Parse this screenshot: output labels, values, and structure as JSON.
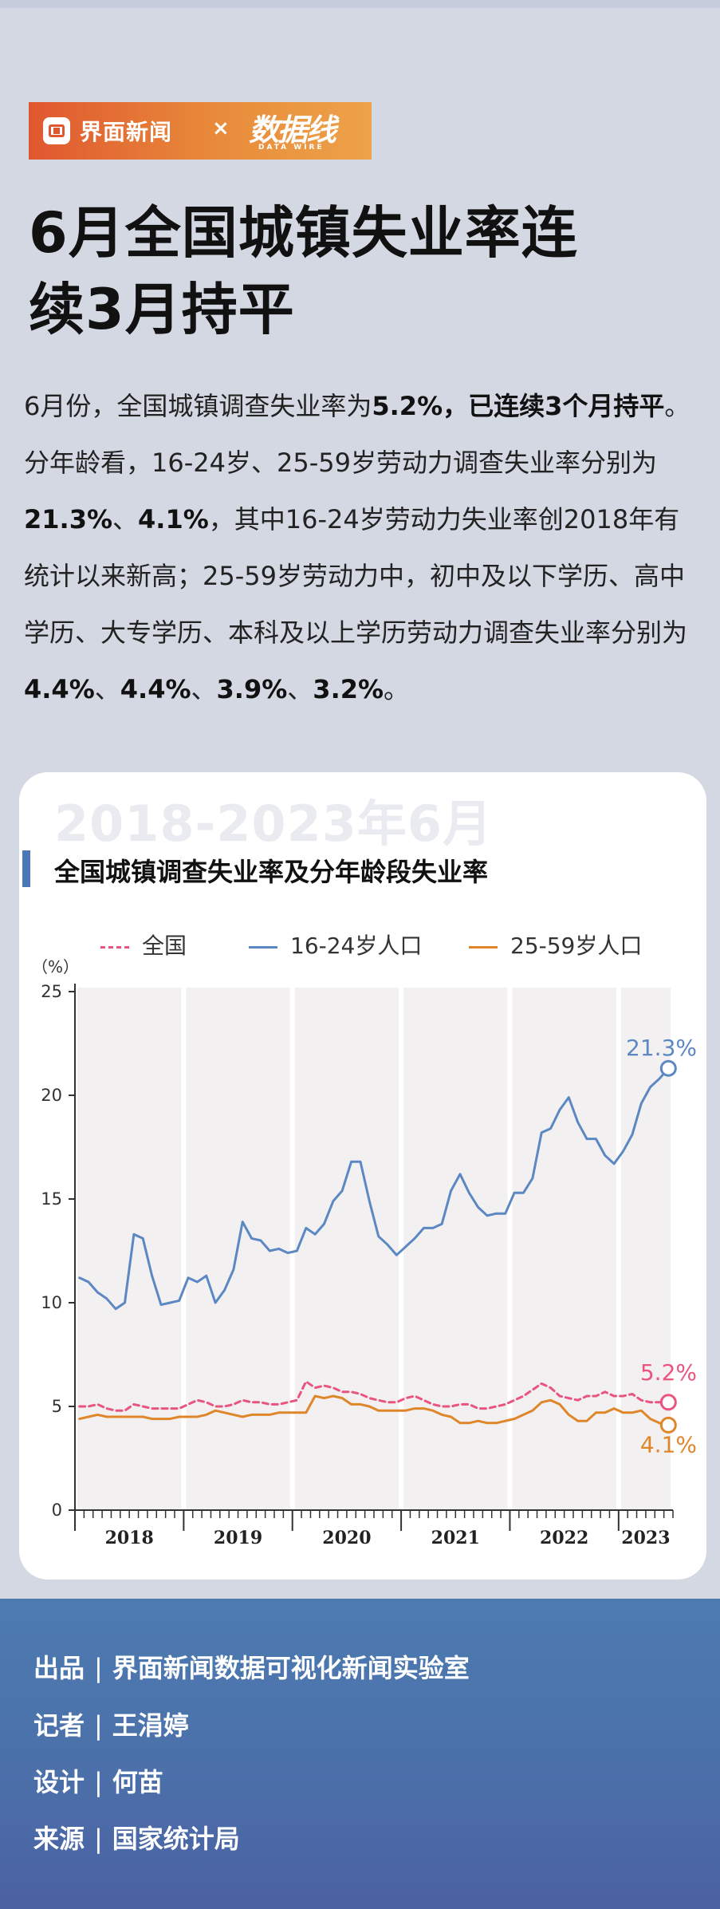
{
  "brand": {
    "name": "界面新闻",
    "cross": "×",
    "partner": "数据线",
    "partner_sub": "DATA WIRE"
  },
  "headline": {
    "line1": "6月全国城镇失业率连",
    "line2": "续3月持平"
  },
  "intro": {
    "p1": "6月份，全国城镇调查失业率为",
    "b1": "5.2%，已连续3个月持平",
    "p2": "。分年龄看，16-24岁、25-59岁劳动力调查失业率分别为",
    "b2": "21.3%",
    "p3": "、",
    "b3": "4.1%",
    "p4": "，其中16-24岁劳动力失业率创2018年有统计以来新高；25-59岁劳动力中，初中及以下学历、高中学历、大专学历、本科及以上学历劳动力调查失业率分别为",
    "b4": "4.4%",
    "p5": "、",
    "b5": "4.4%",
    "p6": "、",
    "b6": "3.9%",
    "p7": "、",
    "b7": "3.2%",
    "p8": "。"
  },
  "chart_header": {
    "period": "2018-2023年6月",
    "title": "全国城镇调查失业率及分年龄段失业率",
    "unit": "（%）"
  },
  "chart_data": {
    "type": "line",
    "title": "全国城镇调查失业率及分年龄段失业率",
    "xlabel": "",
    "ylabel": "（%）",
    "ylim": [
      0,
      25
    ],
    "yticks": [
      0,
      5,
      10,
      15,
      20,
      25
    ],
    "year_labels": [
      "2018",
      "2019",
      "2020",
      "2021",
      "2022",
      "2023"
    ],
    "x_start": "2018-01",
    "x_end": "2023-06",
    "grid": false,
    "legend": "top",
    "end_labels": [
      "21.3%",
      "5.2%",
      "4.1%"
    ],
    "series": [
      {
        "name": "全国",
        "style": "dashed",
        "color": "#e9557f",
        "values": [
          5.0,
          5.0,
          5.1,
          4.9,
          4.8,
          4.8,
          5.1,
          5.0,
          4.9,
          4.9,
          4.9,
          4.9,
          5.1,
          5.3,
          5.2,
          5.0,
          5.0,
          5.1,
          5.3,
          5.2,
          5.2,
          5.1,
          5.1,
          5.2,
          5.3,
          6.2,
          5.9,
          6.0,
          5.9,
          5.7,
          5.7,
          5.6,
          5.4,
          5.3,
          5.2,
          5.2,
          5.4,
          5.5,
          5.3,
          5.1,
          5.0,
          5.0,
          5.1,
          5.1,
          4.9,
          4.9,
          5.0,
          5.1,
          5.3,
          5.5,
          5.8,
          6.1,
          5.9,
          5.5,
          5.4,
          5.3,
          5.5,
          5.5,
          5.7,
          5.5,
          5.5,
          5.6,
          5.3,
          5.2,
          5.2,
          5.2
        ]
      },
      {
        "name": "16-24岁人口",
        "style": "solid",
        "color": "#5b88c3",
        "values": [
          11.2,
          11.0,
          10.5,
          10.2,
          9.7,
          10.0,
          13.3,
          13.1,
          11.3,
          9.9,
          10.0,
          10.1,
          11.2,
          11.0,
          11.3,
          10.0,
          10.6,
          11.6,
          13.9,
          13.1,
          13.0,
          12.5,
          12.6,
          12.4,
          12.5,
          13.6,
          13.3,
          13.8,
          14.9,
          15.4,
          16.8,
          16.8,
          14.9,
          13.2,
          12.8,
          12.3,
          12.7,
          13.1,
          13.6,
          13.6,
          13.8,
          15.4,
          16.2,
          15.3,
          14.6,
          14.2,
          14.3,
          14.3,
          15.3,
          15.3,
          16.0,
          18.2,
          18.4,
          19.3,
          19.9,
          18.7,
          17.9,
          17.9,
          17.1,
          16.7,
          17.3,
          18.1,
          19.6,
          20.4,
          20.8,
          21.3
        ]
      },
      {
        "name": "25-59岁人口",
        "style": "solid",
        "color": "#e0862a",
        "values": [
          4.4,
          4.5,
          4.6,
          4.5,
          4.5,
          4.5,
          4.5,
          4.5,
          4.4,
          4.4,
          4.4,
          4.5,
          4.5,
          4.5,
          4.6,
          4.8,
          4.7,
          4.6,
          4.5,
          4.6,
          4.6,
          4.6,
          4.7,
          4.7,
          4.7,
          4.7,
          5.5,
          5.4,
          5.5,
          5.4,
          5.1,
          5.1,
          5.0,
          4.8,
          4.8,
          4.8,
          4.8,
          4.9,
          4.9,
          4.8,
          4.6,
          4.5,
          4.2,
          4.2,
          4.3,
          4.2,
          4.2,
          4.3,
          4.4,
          4.6,
          4.8,
          5.2,
          5.3,
          5.1,
          4.6,
          4.3,
          4.3,
          4.7,
          4.7,
          4.9,
          4.7,
          4.7,
          4.8,
          4.4,
          4.2,
          4.1
        ]
      }
    ]
  },
  "footer": {
    "producer_label": "出品",
    "producer": "界面新闻数据可视化新闻实验室",
    "reporter_label": "记者",
    "reporter": "王涓婷",
    "designer_label": "设计",
    "designer": "何苗",
    "source_label": "来源",
    "source": "国家统计局",
    "sep": "|"
  },
  "colors": {
    "accent_blue": "#4a77b6",
    "brand_orange": "#e0572f",
    "national": "#e9557f",
    "youth": "#5b88c3",
    "adult": "#e0862a",
    "footer_bg": "#4d7bb0"
  }
}
